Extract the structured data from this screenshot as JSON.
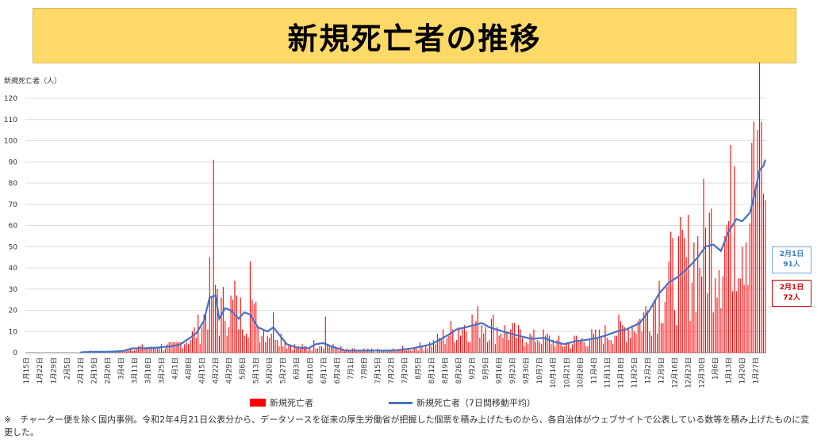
{
  "title": "新規死亡者の推移",
  "chart_data": {
    "type": "bar",
    "y_axis_title": "新規死亡者（人）",
    "ylim": [
      0,
      120
    ],
    "y_ticks": [
      0,
      10,
      20,
      30,
      40,
      50,
      60,
      70,
      80,
      90,
      100,
      110,
      120
    ],
    "x_start_date": "1月15日",
    "x_tick_labels": [
      "1月15日",
      "1月22日",
      "1月29日",
      "2月5日",
      "2月12日",
      "2月19日",
      "2月26日",
      "3月4日",
      "3月11日",
      "3月18日",
      "3月25日",
      "4月1日",
      "4月8日",
      "4月15日",
      "4月22日",
      "4月29日",
      "5月6日",
      "5月13日",
      "5月20日",
      "5月27日",
      "6月3日",
      "6月10日",
      "6月17日",
      "6月24日",
      "7月1日",
      "7月8日",
      "7月15日",
      "7月22日",
      "7月29日",
      "8月5日",
      "8月12日",
      "8月19日",
      "8月26日",
      "9月2日",
      "9月9日",
      "9月16日",
      "9月23日",
      "9月30日",
      "10月7日",
      "10月14日",
      "10月21日",
      "10月28日",
      "11月4日",
      "11月11日",
      "11月18日",
      "11月25日",
      "12月2日",
      "12月9日",
      "12月16日",
      "12月23日",
      "12月30日",
      "1月6日",
      "1月13日",
      "1月20日",
      "1月27日"
    ],
    "series": [
      {
        "name": "新規死亡者",
        "type": "bar",
        "color": "#ff0000",
        "values": [
          0,
          0,
          0,
          0,
          0,
          0,
          0,
          0,
          0,
          0,
          0,
          0,
          0,
          0,
          0,
          0,
          0,
          0,
          0,
          0,
          0,
          0,
          0,
          0,
          0,
          0,
          0,
          0,
          0,
          0,
          0,
          0,
          0,
          0,
          0,
          0,
          0,
          0,
          0,
          0,
          0,
          0,
          0,
          0,
          0,
          0,
          0,
          0,
          0,
          0,
          0,
          0,
          0,
          0,
          0,
          0,
          0,
          0,
          0,
          0,
          0,
          0,
          0,
          0,
          0,
          0,
          0,
          0,
          0,
          0,
          0,
          0,
          0,
          0,
          0,
          0,
          0,
          0,
          0,
          0,
          0,
          0,
          0,
          0,
          0,
          0,
          0,
          0,
          0,
          0,
          0,
          0,
          0,
          0,
          0,
          0,
          0,
          0,
          0,
          0,
          0,
          0,
          0,
          0,
          0,
          0,
          0,
          0,
          0,
          0,
          0,
          0,
          0,
          0,
          0,
          0,
          0,
          0,
          0,
          0,
          0,
          0,
          0,
          0,
          0,
          0,
          0,
          0,
          0,
          0,
          0,
          0,
          0,
          0,
          0,
          0,
          0,
          0,
          0,
          0,
          0,
          0,
          0,
          0,
          0,
          0,
          0,
          0,
          0,
          0,
          0,
          0,
          0,
          0,
          0,
          0,
          0,
          0,
          0,
          0,
          0,
          0,
          0,
          0,
          0,
          0,
          0,
          0,
          0,
          0,
          0,
          0,
          0,
          0,
          0,
          0,
          0,
          0,
          0,
          0,
          0,
          0,
          0,
          0,
          0,
          0,
          0,
          0,
          0,
          0,
          0,
          0,
          0,
          0,
          0,
          0,
          0,
          0,
          0,
          0,
          0,
          0,
          0,
          0,
          0,
          0,
          0,
          0,
          0,
          0,
          0,
          0,
          0,
          0,
          0,
          0,
          0,
          0,
          0,
          0,
          0,
          0,
          0,
          0,
          0,
          0,
          0,
          0,
          0,
          0,
          0,
          0,
          0,
          0,
          0,
          0,
          0,
          0,
          0,
          0,
          0,
          0,
          0,
          0,
          0,
          0,
          0,
          0,
          0,
          0,
          0,
          0,
          0,
          0,
          0,
          0,
          0,
          0,
          0,
          0,
          0,
          0,
          0,
          0,
          0,
          0,
          0,
          0,
          0,
          0,
          0,
          0,
          0,
          0,
          0,
          0,
          0,
          0,
          0,
          0,
          0,
          0,
          0,
          0,
          0,
          0,
          0,
          0,
          0,
          0,
          0,
          0,
          0,
          0,
          0,
          0,
          0,
          0,
          0,
          0,
          0,
          0,
          0,
          0,
          0,
          0,
          0,
          0,
          0,
          0,
          0,
          0,
          0,
          0,
          0,
          0,
          0,
          0,
          0,
          0,
          0,
          0,
          0,
          0,
          0,
          0,
          0,
          0,
          0,
          0,
          0,
          0,
          0,
          0,
          0,
          0,
          0,
          0,
          0,
          0,
          0,
          0,
          0,
          0,
          0,
          0,
          0,
          0,
          0,
          0,
          0,
          0,
          0,
          0,
          0,
          0,
          0,
          0,
          0,
          0,
          0,
          0,
          0,
          0,
          0,
          0,
          0,
          0,
          0,
          0,
          0,
          0,
          0,
          0,
          0,
          0,
          0,
          0,
          0,
          0,
          0,
          0,
          0,
          0,
          0,
          0,
          0,
          0,
          0,
          0,
          0,
          0,
          0,
          0,
          0,
          0,
          0,
          0,
          0,
          0,
          0,
          0,
          0
        ]
      },
      {
        "name": "新規死亡者（7日間移動平均）",
        "type": "line",
        "color": "#4472c4",
        "values": []
      }
    ],
    "callouts": [
      {
        "date": "2月1日",
        "value": "91人",
        "color": "#3d78c2"
      },
      {
        "date": "2月1日",
        "value": "72人",
        "color": "#cc0000"
      }
    ]
  },
  "footnote": "※　チャーター便を除く国内事例。令和2年4月21日公表分から、データソースを従来の厚生労働省が把握した個票を積み上げたものから、各自治体がウェブサイトで公表している数等を積み上げたものに変更した。"
}
